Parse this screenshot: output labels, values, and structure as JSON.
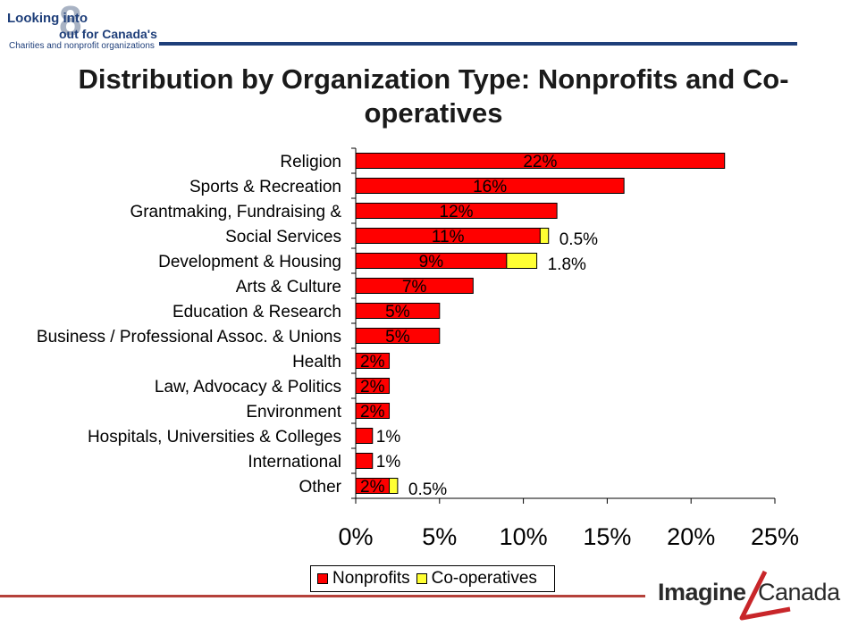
{
  "logo_top": {
    "line1": "Looking into",
    "line2": "out for Canada's",
    "line3": "Charities and nonprofit organizations",
    "eight": "8"
  },
  "title": "Distribution by Organization Type: Nonprofits and Co-operatives",
  "colors": {
    "nonprofits": "#ff0000",
    "cooperatives": "#ffff33",
    "top_rule": "#1f3f7a",
    "bottom_rule": "#b5413a",
    "logo_accent": "#c8262a"
  },
  "chart_data": {
    "type": "bar",
    "orientation": "horizontal",
    "stacked": true,
    "categories": [
      "Religion",
      "Sports & Recreation",
      "Grantmaking, Fundraising &",
      "Social Services",
      "Development & Housing",
      "Arts & Culture",
      "Education & Research",
      "Business / Professional Assoc. & Unions",
      "Health",
      "Law, Advocacy & Politics",
      "Environment",
      "Hospitals, Universities & Colleges",
      "International",
      "Other"
    ],
    "series": [
      {
        "name": "Nonprofits",
        "values": [
          22,
          16,
          12,
          11,
          9,
          7,
          5,
          5,
          2,
          2,
          2,
          1,
          1,
          2
        ],
        "labels": [
          "22%",
          "16%",
          "12%",
          "11%",
          "9%",
          "7%",
          "5%",
          "5%",
          "2%",
          "2%",
          "2%",
          "1%",
          "1%",
          "2%"
        ]
      },
      {
        "name": "Co-operatives",
        "values": [
          0,
          0,
          0,
          0.5,
          1.8,
          0,
          0,
          0,
          0,
          0,
          0,
          0,
          0,
          0.5
        ],
        "labels": [
          "",
          "",
          "",
          "0.5%",
          "1.8%",
          "",
          "",
          "",
          "",
          "",
          "",
          "",
          "",
          "0.5%"
        ]
      }
    ],
    "xlim": [
      0,
      25
    ],
    "xticks": [
      "0%",
      "5%",
      "10%",
      "15%",
      "20%",
      "25%"
    ],
    "xlabel": "",
    "ylabel": "",
    "legend": {
      "placement": "bottom",
      "entries": [
        "Nonprofits",
        "Co-operatives"
      ]
    },
    "grid": false
  },
  "logo_bottom": {
    "word1": "Imagine",
    "word2": "Canada"
  }
}
